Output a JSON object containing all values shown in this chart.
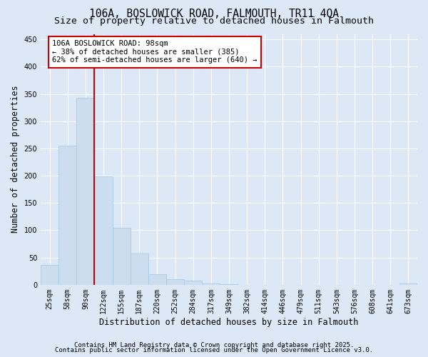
{
  "title": "106A, BOSLOWICK ROAD, FALMOUTH, TR11 4QA",
  "subtitle": "Size of property relative to detached houses in Falmouth",
  "xlabel": "Distribution of detached houses by size in Falmouth",
  "ylabel": "Number of detached properties",
  "categories": [
    "25sqm",
    "58sqm",
    "90sqm",
    "122sqm",
    "155sqm",
    "187sqm",
    "220sqm",
    "252sqm",
    "284sqm",
    "317sqm",
    "349sqm",
    "382sqm",
    "414sqm",
    "446sqm",
    "479sqm",
    "511sqm",
    "543sqm",
    "576sqm",
    "608sqm",
    "641sqm",
    "673sqm"
  ],
  "values": [
    36,
    255,
    343,
    199,
    104,
    57,
    20,
    10,
    8,
    3,
    1,
    0,
    0,
    0,
    0,
    0,
    0,
    0,
    0,
    0,
    2
  ],
  "bar_color": "#ccddf0",
  "bar_edge_color": "#aaccee",
  "property_line_color": "#cc0000",
  "property_line_x": 2.5,
  "annotation_text": "106A BOSLOWICK ROAD: 98sqm\n← 38% of detached houses are smaller (385)\n62% of semi-detached houses are larger (640) →",
  "annotation_box_facecolor": "#ffffff",
  "annotation_box_edgecolor": "#cc0000",
  "ylim": [
    0,
    460
  ],
  "yticks": [
    0,
    50,
    100,
    150,
    200,
    250,
    300,
    350,
    400,
    450
  ],
  "background_color": "#dce8f5",
  "grid_color": "#ffffff",
  "title_fontsize": 10.5,
  "subtitle_fontsize": 9.5,
  "xlabel_fontsize": 8.5,
  "ylabel_fontsize": 8.5,
  "tick_fontsize": 7,
  "annotation_fontsize": 7.5,
  "footnote_fontsize": 6.5,
  "footnote1": "Contains HM Land Registry data © Crown copyright and database right 2025.",
  "footnote2": "Contains public sector information licensed under the Open Government Licence v3.0."
}
